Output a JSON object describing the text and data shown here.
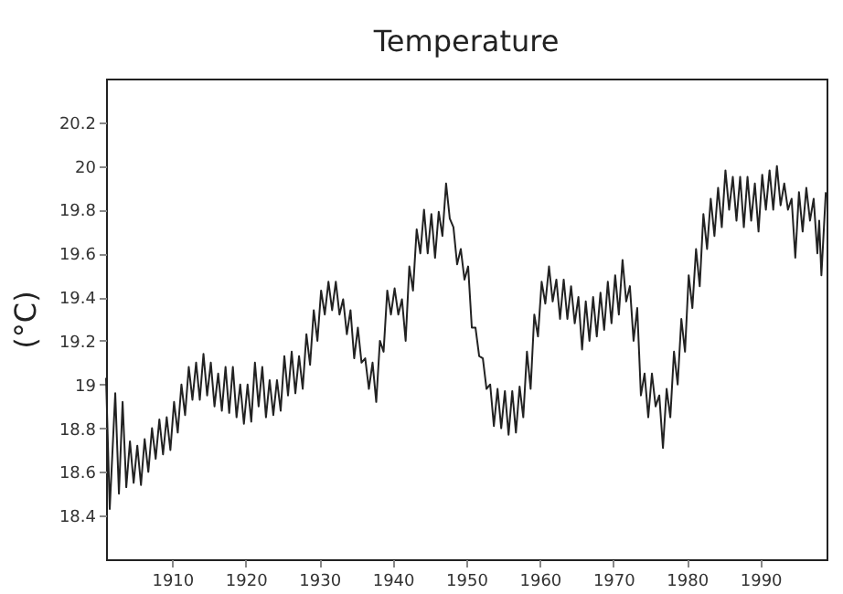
{
  "chart_data": {
    "type": "line",
    "title": "Temperature",
    "ylabel": "(°C)",
    "xlim": [
      1901,
      1999
    ],
    "xticks": [
      1910,
      1920,
      1930,
      1940,
      1950,
      1960,
      1970,
      1980,
      1990
    ],
    "ylim": [
      18.2,
      20.4
    ],
    "yticks": [
      18.4,
      18.6,
      18.8,
      19,
      19.2,
      19.4,
      19.6,
      19.8,
      20,
      20.2
    ],
    "grid": false,
    "legend": false,
    "marker": "none",
    "line_style": "solid",
    "series": [
      {
        "color": "#222222",
        "x": [
          1901,
          1901.5,
          1902.25,
          1902.75,
          1903.25,
          1903.75,
          1904.25,
          1904.75,
          1905.25,
          1905.75,
          1906.25,
          1906.75,
          1907.25,
          1907.75,
          1908.25,
          1908.75,
          1909.25,
          1909.75,
          1910.25,
          1910.75,
          1911.25,
          1911.75,
          1912.25,
          1912.75,
          1913.25,
          1913.75,
          1914.25,
          1914.75,
          1915.25,
          1915.75,
          1916.25,
          1916.75,
          1917.25,
          1917.75,
          1918.25,
          1918.75,
          1919.25,
          1919.75,
          1920.25,
          1920.75,
          1921.25,
          1921.75,
          1922.25,
          1922.75,
          1923.25,
          1923.75,
          1924.25,
          1924.75,
          1925.25,
          1925.75,
          1926.25,
          1926.75,
          1927.25,
          1927.75,
          1928.25,
          1928.75,
          1929.25,
          1929.75,
          1930.25,
          1930.75,
          1931.25,
          1931.75,
          1932.25,
          1932.75,
          1933.25,
          1933.75,
          1934.25,
          1934.75,
          1935.25,
          1935.75,
          1936.25,
          1936.75,
          1937.25,
          1937.75,
          1938.25,
          1938.75,
          1939.25,
          1939.75,
          1940.25,
          1940.75,
          1941.25,
          1941.75,
          1942.25,
          1942.75,
          1943.25,
          1943.75,
          1944.25,
          1944.75,
          1945.25,
          1945.75,
          1946.25,
          1946.75,
          1947.25,
          1947.75,
          1948.25,
          1948.75,
          1949.25,
          1949.75,
          1950.25,
          1950.75,
          1951.25,
          1951.75,
          1952.25,
          1952.75,
          1953.25,
          1953.75,
          1954.25,
          1954.75,
          1955.25,
          1955.75,
          1956.25,
          1956.75,
          1957.25,
          1957.75,
          1958.25,
          1958.75,
          1959.25,
          1959.75,
          1960.25,
          1960.75,
          1961.25,
          1961.75,
          1962.25,
          1962.75,
          1963.25,
          1963.75,
          1964.25,
          1964.75,
          1965.25,
          1965.75,
          1966.25,
          1966.75,
          1967.25,
          1967.75,
          1968.25,
          1968.75,
          1969.25,
          1969.75,
          1970.25,
          1970.75,
          1971.25,
          1971.75,
          1972.25,
          1972.75,
          1973.25,
          1973.75,
          1974.25,
          1974.75,
          1975.25,
          1975.75,
          1976.25,
          1976.75,
          1977.25,
          1977.75,
          1978.25,
          1978.75,
          1979.25,
          1979.75,
          1980.25,
          1980.75,
          1981.25,
          1981.75,
          1982.25,
          1982.75,
          1983.25,
          1983.75,
          1984.25,
          1984.75,
          1985.25,
          1985.75,
          1986.25,
          1986.75,
          1987.25,
          1987.75,
          1988.25,
          1988.75,
          1989.25,
          1989.75,
          1990.25,
          1990.75,
          1991.25,
          1991.75,
          1992.25,
          1992.75,
          1993.25,
          1993.75,
          1994.25,
          1994.75,
          1995.25,
          1995.75,
          1996.25,
          1996.75,
          1997.25,
          1997.75,
          1998,
          1998.3,
          1998.9
        ],
        "values": [
          19.03,
          18.43,
          18.96,
          18.5,
          18.92,
          18.53,
          18.74,
          18.55,
          18.72,
          18.54,
          18.75,
          18.6,
          18.8,
          18.66,
          18.84,
          18.68,
          18.85,
          18.7,
          18.92,
          18.78,
          19.0,
          18.86,
          19.08,
          18.93,
          19.1,
          18.93,
          19.14,
          18.95,
          19.1,
          18.9,
          19.05,
          18.88,
          19.08,
          18.87,
          19.08,
          18.85,
          19.0,
          18.82,
          19.0,
          18.83,
          19.1,
          18.9,
          19.08,
          18.85,
          19.02,
          18.86,
          19.02,
          18.88,
          19.13,
          18.95,
          19.15,
          18.96,
          19.13,
          18.98,
          19.23,
          19.09,
          19.34,
          19.2,
          19.43,
          19.32,
          19.47,
          19.34,
          19.47,
          19.32,
          19.39,
          19.23,
          19.34,
          19.12,
          19.26,
          19.1,
          19.12,
          18.98,
          19.1,
          18.92,
          19.2,
          19.15,
          19.43,
          19.32,
          19.44,
          19.32,
          19.39,
          19.2,
          19.54,
          19.43,
          19.71,
          19.6,
          19.8,
          19.6,
          19.78,
          19.58,
          19.79,
          19.68,
          19.92,
          19.76,
          19.72,
          19.55,
          19.62,
          19.48,
          19.54,
          19.26,
          19.26,
          19.13,
          19.12,
          18.98,
          19.0,
          18.81,
          18.98,
          18.8,
          18.97,
          18.77,
          18.97,
          18.78,
          18.99,
          18.85,
          19.15,
          18.98,
          19.32,
          19.22,
          19.47,
          19.37,
          19.54,
          19.38,
          19.48,
          19.3,
          19.48,
          19.3,
          19.45,
          19.28,
          19.4,
          19.16,
          19.38,
          19.2,
          19.4,
          19.22,
          19.42,
          19.25,
          19.47,
          19.28,
          19.5,
          19.32,
          19.57,
          19.38,
          19.45,
          19.2,
          19.35,
          18.95,
          19.05,
          18.85,
          19.05,
          18.9,
          18.95,
          18.71,
          18.98,
          18.85,
          19.15,
          19.0,
          19.3,
          19.15,
          19.5,
          19.35,
          19.62,
          19.45,
          19.78,
          19.62,
          19.85,
          19.68,
          19.9,
          19.72,
          19.98,
          19.8,
          19.95,
          19.75,
          19.95,
          19.72,
          19.95,
          19.75,
          19.92,
          19.7,
          19.96,
          19.8,
          19.98,
          19.8,
          20.0,
          19.82,
          19.92,
          19.8,
          19.85,
          19.58,
          19.88,
          19.7,
          19.9,
          19.75,
          19.85,
          19.6,
          19.75,
          19.5,
          19.88
        ]
      }
    ]
  }
}
